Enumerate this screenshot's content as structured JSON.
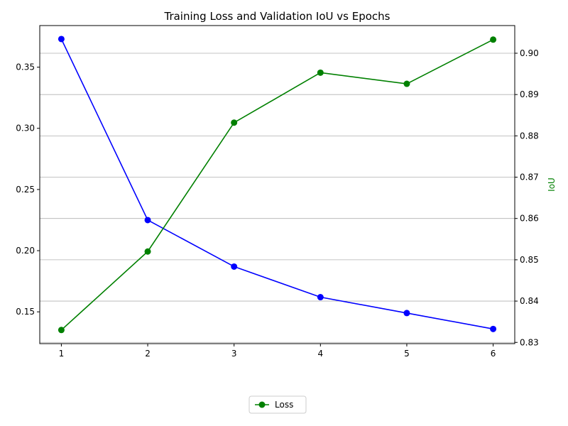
{
  "chart_data": {
    "type": "line",
    "title": "Training Loss and Validation IoU vs Epochs",
    "xlabel": "",
    "ylabel_left": "",
    "ylabel_right": "IoU",
    "x": [
      1,
      2,
      3,
      4,
      5,
      6
    ],
    "x_ticks": [
      "1",
      "2",
      "3",
      "4",
      "5",
      "6"
    ],
    "xlim": [
      0.75,
      6.25
    ],
    "ylim_left": [
      0.124,
      0.384
    ],
    "ylim_right": [
      0.8297,
      0.9067
    ],
    "y_ticks_left": [
      "0.15",
      "0.20",
      "0.25",
      "0.30",
      "0.35"
    ],
    "y_ticks_right": [
      "0.83",
      "0.84",
      "0.85",
      "0.86",
      "0.87",
      "0.88",
      "0.89",
      "0.90"
    ],
    "grid": "horizontal, right axis",
    "legend_position": "bottom-center",
    "series": [
      {
        "name": "",
        "axis": "left",
        "color": "#0000ff",
        "marker": "circle",
        "values": [
          0.373,
          0.225,
          0.187,
          0.162,
          0.149,
          0.136
        ]
      },
      {
        "name": "Loss",
        "axis": "right",
        "color": "#008000",
        "marker": "circle",
        "values": [
          0.833,
          0.852,
          0.8832,
          0.8953,
          0.8926,
          0.9033
        ]
      }
    ],
    "legend": [
      {
        "label": "Loss",
        "color": "#008000"
      }
    ],
    "colors": {
      "axis_right_label": "#008000"
    }
  }
}
